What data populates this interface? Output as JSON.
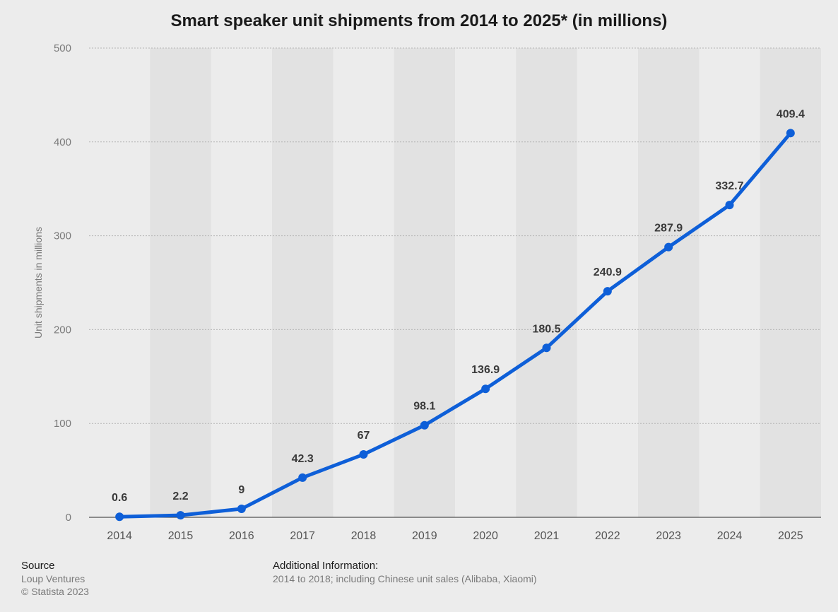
{
  "chart_data": {
    "type": "line",
    "title": "Smart speaker unit shipments from 2014 to 2025* (in millions)",
    "ylabel": "Unit shipments in millions",
    "xlabel": "",
    "categories": [
      "2014",
      "2015",
      "2016",
      "2017",
      "2018",
      "2019",
      "2020",
      "2021",
      "2022",
      "2023",
      "2024",
      "2025"
    ],
    "values": [
      0.6,
      2.2,
      9,
      42.3,
      67,
      98.1,
      136.9,
      180.5,
      240.9,
      287.9,
      332.7,
      409.4
    ],
    "data_labels": [
      "0.6",
      "2.2",
      "9",
      "42.3",
      "67",
      "98.1",
      "136.9",
      "180.5",
      "240.9",
      "287.9",
      "332.7",
      "409.4"
    ],
    "ylim": [
      0,
      500
    ],
    "yticks": [
      0,
      100,
      200,
      300,
      400,
      500
    ],
    "grid": true,
    "series_color": "#0e5fd8"
  },
  "footer": {
    "source_heading": "Source",
    "source_name": "Loup Ventures",
    "copyright": "© Statista 2023",
    "additional_heading": "Additional Information:",
    "additional_text": "2014 to 2018; including Chinese unit sales (Alibaba, Xiaomi)"
  }
}
